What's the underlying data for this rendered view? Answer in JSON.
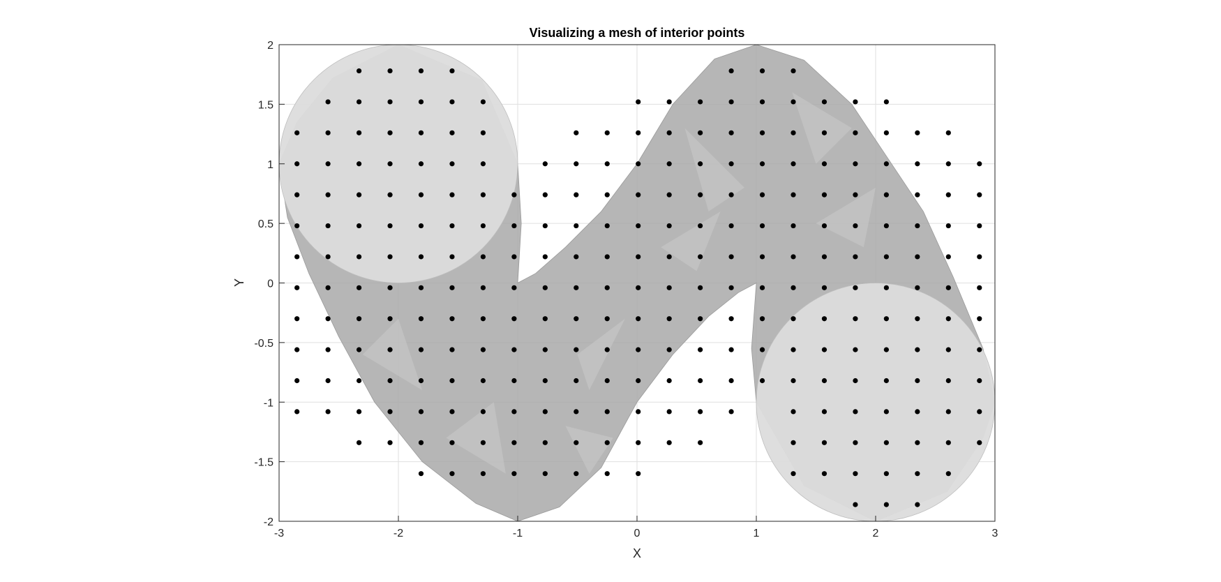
{
  "chart_data": {
    "type": "scatter",
    "title": "Visualizing a mesh of interior points",
    "xlabel": "X",
    "ylabel": "Y",
    "xlim": [
      -3,
      3
    ],
    "ylim": [
      -2,
      2
    ],
    "xticks": [
      -3,
      -2,
      -1,
      0,
      1,
      2,
      3
    ],
    "yticks": [
      -2,
      -1.5,
      -1,
      -0.5,
      0,
      0.5,
      1,
      1.5,
      2
    ],
    "xtick_labels": [
      "-3",
      "-2",
      "-1",
      "0",
      "1",
      "2",
      "3"
    ],
    "ytick_labels": [
      "-2",
      "-1.5",
      "-1",
      "-0.5",
      "0",
      "0.5",
      "1",
      "1.5",
      "2"
    ],
    "grid": true,
    "colors": {
      "points": "#000000",
      "surface": "#a9a9a9",
      "caps": "#dcdcdc",
      "grid": "#dfdfdf",
      "axis": "#262626"
    },
    "surface": {
      "description_type": "translucent gray 3D tube mesh viewed from above",
      "regions": [
        {
          "name": "left-cap",
          "center": [
            -2,
            1
          ],
          "radius": 1
        },
        {
          "name": "right-cap",
          "center": [
            2,
            -1
          ],
          "radius": 1
        },
        {
          "name": "upper-arc",
          "center": [
            1,
            1
          ],
          "radius": 1
        },
        {
          "name": "lower-arc",
          "center": [
            -1,
            -1
          ],
          "radius": 1
        }
      ]
    },
    "grid_step": 0.26,
    "grid_origin": [
      0.01,
      -0.04
    ]
  }
}
